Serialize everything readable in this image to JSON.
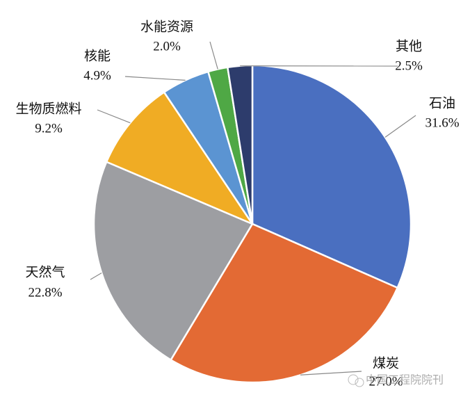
{
  "chart_data": {
    "type": "pie",
    "categories": [
      "石油",
      "煤炭",
      "天然气",
      "生物质燃料",
      "核能",
      "水能资源",
      "其他"
    ],
    "values": [
      31.6,
      27.0,
      22.8,
      9.2,
      4.9,
      2.0,
      2.5
    ],
    "value_labels": [
      "31.6%",
      "27.0%",
      "22.8%",
      "9.2%",
      "4.9%",
      "2.0%",
      "2.5%"
    ],
    "colors": [
      "#4a6fc0",
      "#e36a34",
      "#9d9ea2",
      "#f0ac24",
      "#5b94d2",
      "#4fa845",
      "#2d3c6c"
    ],
    "watermark": "中国工程院院刊"
  }
}
